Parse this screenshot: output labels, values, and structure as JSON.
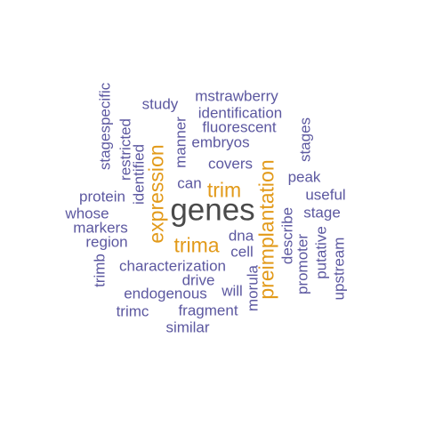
{
  "colors": {
    "purple": "#5c58a0",
    "gold": "#e29a1a",
    "dark": "#4a4a4a"
  },
  "words": {
    "genes": "genes",
    "expression": "expression",
    "preimplantation": "preimplantation",
    "trim": "trim",
    "trima": "trima",
    "mstrawberry": "mstrawberry",
    "study": "study",
    "identification": "identification",
    "fluorescent": "fluorescent",
    "embryos": "embryos",
    "covers": "covers",
    "can": "can",
    "stagespecific": "stagespecific",
    "restricted": "restricted",
    "identified": "identified",
    "manner": "manner",
    "stages": "stages",
    "peak": "peak",
    "useful": "useful",
    "stage": "stage",
    "protein": "protein",
    "whose": "whose",
    "markers": "markers",
    "region": "region",
    "dna": "dna",
    "cell": "cell",
    "describe": "describe",
    "promoter": "promoter",
    "putative": "putative",
    "upstream": "upstream",
    "trimb": "trimb",
    "characterization": "characterization",
    "drive": "drive",
    "will": "will",
    "morula": "morula",
    "endogenous": "endogenous",
    "trimc": "trimc",
    "fragment": "fragment",
    "similar": "similar"
  }
}
